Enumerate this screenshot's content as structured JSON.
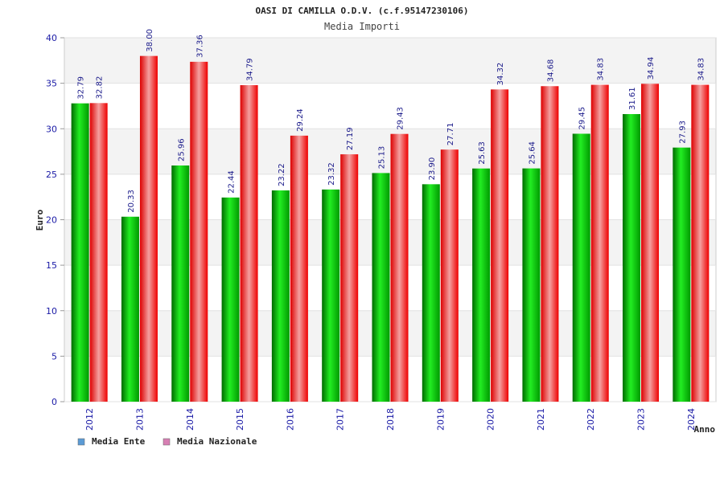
{
  "chart_data": {
    "type": "bar",
    "title": "OASI DI CAMILLA O.D.V. (c.f.95147230106)",
    "subtitle": "Media Importi",
    "xlabel": "Anno",
    "ylabel": "Euro",
    "ylim": [
      0,
      40
    ],
    "yticks": [
      0,
      5,
      10,
      15,
      20,
      25,
      30,
      35,
      40
    ],
    "grid": true,
    "legend_position": "bottom-left",
    "categories": [
      "2012",
      "2013",
      "2014",
      "2015",
      "2016",
      "2017",
      "2018",
      "2019",
      "2020",
      "2021",
      "2022",
      "2023",
      "2024"
    ],
    "series": [
      {
        "name": "Media Ente",
        "legend_color": "#5b9bd5",
        "bar_color": "#00b000",
        "values": [
          32.79,
          20.33,
          25.96,
          22.44,
          23.22,
          23.32,
          25.13,
          23.9,
          25.63,
          25.64,
          29.45,
          31.61,
          27.93
        ],
        "labels": [
          "32.79",
          "20.33",
          "25.96",
          "22.44",
          "23.22",
          "23.32",
          "25.13",
          "23.90",
          "25.63",
          "25.64",
          "29.45",
          "31.61",
          "27.93"
        ]
      },
      {
        "name": "Media Nazionale",
        "legend_color": "#d77fb3",
        "bar_color": "#ee1111",
        "values": [
          32.82,
          38.0,
          37.36,
          34.79,
          29.24,
          27.19,
          29.43,
          27.71,
          34.32,
          34.68,
          34.83,
          34.94,
          34.83
        ],
        "labels": [
          "32.82",
          "38.00",
          "37.36",
          "34.79",
          "29.24",
          "27.19",
          "29.43",
          "27.71",
          "34.32",
          "34.68",
          "34.83",
          "34.94",
          "34.83"
        ]
      }
    ]
  }
}
